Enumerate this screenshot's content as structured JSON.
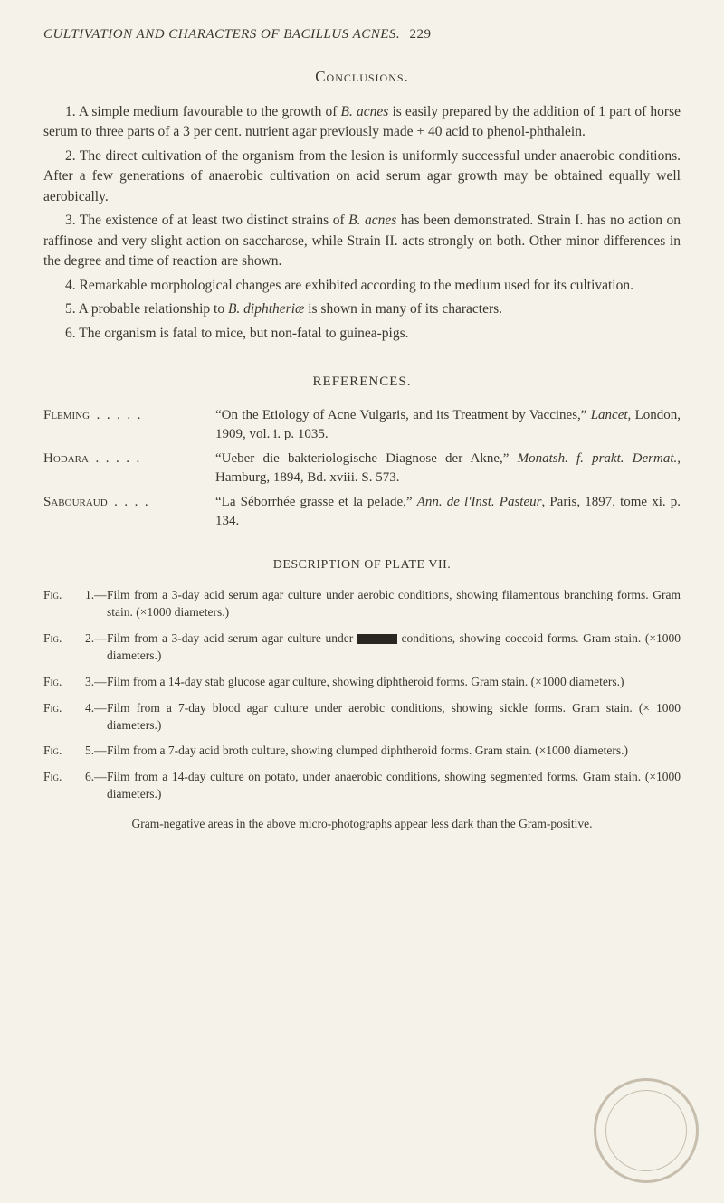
{
  "header": {
    "running_title": "CULTIVATION AND CHARACTERS OF BACILLUS ACNES.",
    "page_number": "229"
  },
  "conclusions": {
    "title": "Conclusions.",
    "items": [
      "1. A simple medium favourable to the growth of <i>B. acnes</i> is easily prepared by the addition of 1 part of horse serum to three parts of a 3 per cent. nutrient agar previously made + 40 acid to phenol-phthalein.",
      "2. The direct cultivation of the organism from the lesion is uniformly successful under anaerobic conditions. After a few genera­tions of anaerobic cultivation on acid serum agar growth may be obtained equally well aerobically.",
      "3. The existence of at least two distinct strains of <i>B. acnes</i> has been demonstrated. Strain I. has no action on raffinose and very slight action on saccharose, while Strain II. acts strongly on both. Other minor differences in the degree and time of reaction are shown.",
      "4. Remarkable morphological changes are exhibited according to the medium used for its cultivation.",
      "5. A probable relationship to <i>B. diphtheriæ</i> is shown in many of its characters.",
      "6. The organism is fatal to mice, but non-fatal to guinea-pigs."
    ]
  },
  "references": {
    "title": "REFERENCES.",
    "entries": [
      {
        "author": "Fleming  .  .  .  .  .",
        "text": "“On the Etiology of Acne Vulgaris, and its Treatment by Vaccines,” <i>Lancet</i>, London, 1909, vol. i. p. 1035."
      },
      {
        "author": "Hodara  .  .  .  .  .",
        "text": "“Ueber die bakteriologische Diagnose der Akne,” <i>Monatsh. f. prakt. Dermat.</i>, Hamburg, 1894, Bd. xviii. S. 573."
      },
      {
        "author": "Sabouraud  .  .  .  .",
        "text": "“La Séborrhée grasse et la pelade,” <i>Ann. de l'Inst. Pasteur</i>, Paris, 1897, tome xi. p. 134."
      }
    ]
  },
  "plate": {
    "title": "DESCRIPTION OF PLATE VII.",
    "figures": [
      {
        "label": "Fig.",
        "num": "1.—",
        "text": "Film from a 3-day acid serum agar culture under aerobic conditions, showing filamentous branching forms. Gram stain. (×1000 diameters.)"
      },
      {
        "label": "Fig.",
        "num": "2.—",
        "text": "Film from a 3-day acid serum agar culture under <span class=\"redaction\"></span> conditions, showing coccoid forms. Gram stain. (×1000 diameters.)"
      },
      {
        "label": "Fig.",
        "num": "3.—",
        "text": "Film from a 14-day stab glucose agar culture, showing diphtheroid forms. Gram stain. (×1000 diameters.)"
      },
      {
        "label": "Fig.",
        "num": "4.—",
        "text": "Film from a 7-day blood agar culture under aerobic conditions, showing sickle forms. Gram stain. (× 1000 diameters.)"
      },
      {
        "label": "Fig.",
        "num": "5.—",
        "text": "Film from a 7-day acid broth culture, showing clumped diphtheroid forms. Gram stain. (×1000 diameters.)"
      },
      {
        "label": "Fig.",
        "num": "6.—",
        "text": "Film from a 14-day culture on potato, under anaerobic conditions, showing segmented forms. Gram stain. (×1000 diameters.)"
      }
    ],
    "note": "Gram-negative areas in the above micro-photographs appear less dark than the Gram-positive."
  },
  "colors": {
    "background": "#f5f2ea",
    "text": "#3a3630",
    "stamp": "#9a8a72"
  }
}
